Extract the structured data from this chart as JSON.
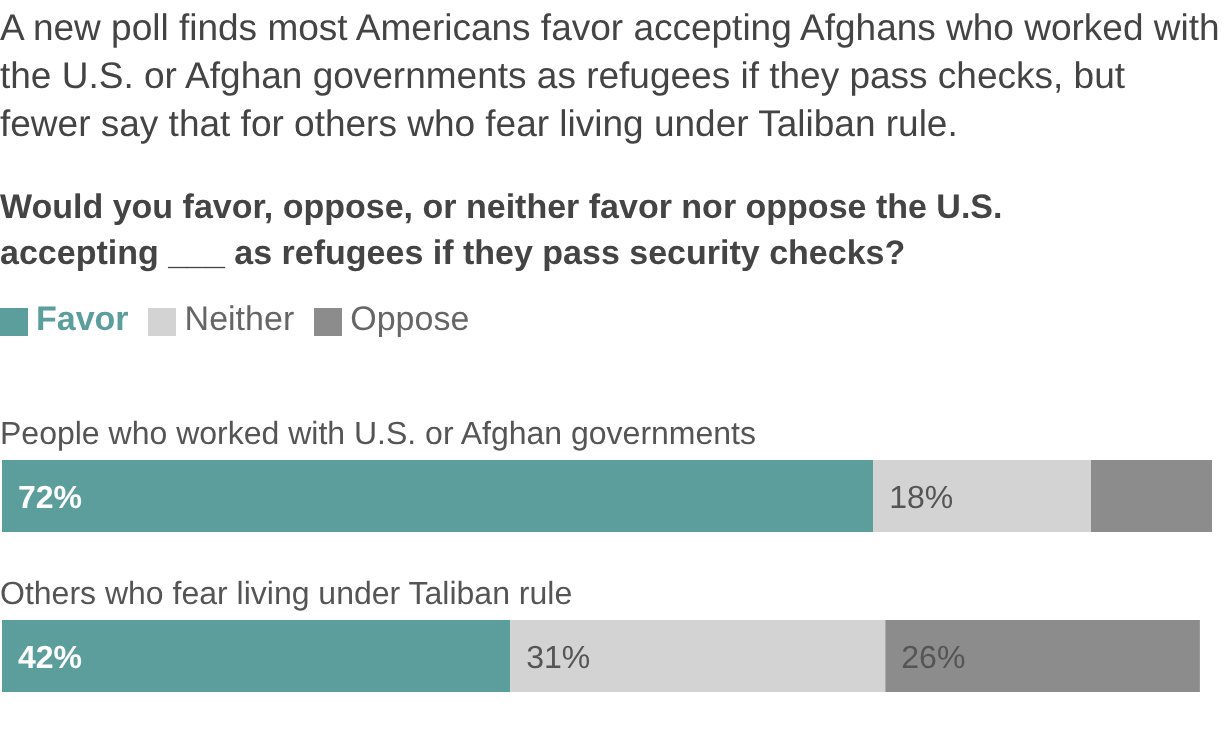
{
  "chart_data": {
    "type": "bar",
    "orientation": "horizontal",
    "stacked": true,
    "title": "A new poll finds most Americans favor accepting Afghans who worked with the U.S. or Afghan governments as refugees if they pass checks, but fewer say that for others who fear living under Taliban rule.",
    "subtitle": "Would you favor, oppose, or neither favor nor oppose the U.S. accepting ___ as refugees if they pass security checks?",
    "categories": [
      "People who worked with U.S. or Afghan governments",
      "Others who fear living under Taliban rule"
    ],
    "series": [
      {
        "name": "Favor",
        "color": "#5c9e9c",
        "values": [
          72,
          42
        ],
        "value_labels": [
          "72%",
          "42%"
        ]
      },
      {
        "name": "Neither",
        "color": "#d3d3d3",
        "values": [
          18,
          31
        ],
        "value_labels": [
          "18%",
          "31%"
        ]
      },
      {
        "name": "Oppose",
        "color": "#8c8c8c",
        "values": [
          10,
          26
        ],
        "value_labels": [
          null,
          "26%"
        ]
      }
    ],
    "legend": "top left",
    "grid": false
  }
}
